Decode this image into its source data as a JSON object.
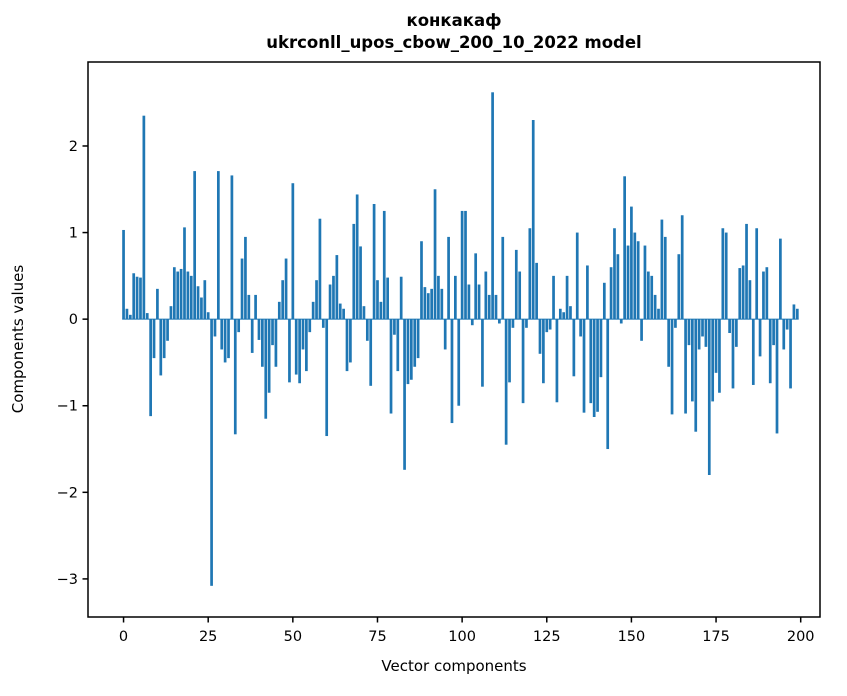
{
  "figure": {
    "title_line1": "конкакаф",
    "title_line2": "ukrconll_upos_cbow_200_10_2022 model",
    "xlabel": "Vector components",
    "ylabel": "Components values"
  },
  "chart_data": {
    "type": "bar",
    "title": "конкакаф\nukrconll_upos_cbow_200_10_2022 model",
    "xlabel": "Vector components",
    "ylabel": "Components values",
    "legend": null,
    "grid": false,
    "bar_color": "#1f77b4",
    "background_color": "#ffffff",
    "spine_color": "#000000",
    "x_start": 0,
    "x_tick_labels": [
      "0",
      "25",
      "50",
      "75",
      "100",
      "125",
      "150",
      "175",
      "200"
    ],
    "x_ticks": [
      0,
      25,
      50,
      75,
      100,
      125,
      150,
      175,
      200
    ],
    "y_tick_labels": [
      "2",
      "1",
      "0",
      "−1",
      "−2",
      "−3"
    ],
    "y_ticks": [
      2,
      1,
      0,
      -1,
      -2,
      -3
    ],
    "xlim": [
      -10.5,
      205.7
    ],
    "ylim": [
      -3.44,
      2.97
    ],
    "bar_width_units": 0.8,
    "values": [
      1.03,
      0.12,
      0.05,
      0.53,
      0.49,
      0.48,
      2.35,
      0.07,
      -1.12,
      -0.45,
      0.35,
      -0.65,
      -0.45,
      -0.25,
      0.15,
      0.6,
      0.55,
      0.58,
      1.06,
      0.55,
      0.5,
      1.71,
      0.38,
      0.25,
      0.45,
      0.08,
      -3.08,
      -0.2,
      1.71,
      -0.35,
      -0.5,
      -0.45,
      1.66,
      -1.33,
      -0.15,
      0.7,
      0.95,
      0.28,
      -0.39,
      0.28,
      -0.24,
      -0.55,
      -1.15,
      -0.85,
      -0.3,
      -0.55,
      0.2,
      0.45,
      0.7,
      -0.73,
      1.57,
      -0.64,
      -0.74,
      -0.35,
      -0.6,
      -0.15,
      0.2,
      0.45,
      1.16,
      -0.1,
      -1.35,
      0.4,
      0.5,
      0.74,
      0.18,
      0.12,
      -0.6,
      -0.5,
      1.1,
      1.44,
      0.84,
      0.15,
      -0.25,
      -0.77,
      1.33,
      0.45,
      0.2,
      1.25,
      0.48,
      -1.09,
      -0.18,
      -0.6,
      0.49,
      -1.74,
      -0.75,
      -0.7,
      -0.55,
      -0.45,
      0.9,
      0.37,
      0.3,
      0.35,
      1.5,
      0.5,
      0.35,
      -0.35,
      0.95,
      -1.2,
      0.5,
      -1.0,
      1.25,
      1.25,
      0.4,
      -0.07,
      0.76,
      0.4,
      -0.78,
      0.55,
      0.28,
      2.62,
      0.28,
      -0.05,
      0.95,
      -1.45,
      -0.73,
      -0.1,
      0.8,
      0.55,
      -0.97,
      -0.1,
      1.05,
      2.3,
      0.65,
      -0.4,
      -0.74,
      -0.15,
      -0.12,
      0.5,
      -0.96,
      0.12,
      0.08,
      0.5,
      0.15,
      -0.66,
      1.0,
      -0.2,
      -1.08,
      0.62,
      -0.97,
      -1.13,
      -1.07,
      -0.67,
      0.42,
      -1.5,
      0.6,
      1.05,
      0.75,
      -0.05,
      1.65,
      0.85,
      1.3,
      1.0,
      0.9,
      -0.25,
      0.85,
      0.55,
      0.5,
      0.28,
      0.12,
      1.15,
      0.95,
      -0.55,
      -1.1,
      -0.1,
      0.75,
      1.2,
      -1.09,
      -0.3,
      -0.95,
      -1.3,
      -0.35,
      -0.2,
      -0.32,
      -1.8,
      -0.95,
      -0.62,
      -0.85,
      1.05,
      1.0,
      -0.16,
      -0.8,
      -0.32,
      0.59,
      0.62,
      1.1,
      0.45,
      -0.76,
      1.05,
      -0.43,
      0.55,
      0.6,
      -0.74,
      -0.3,
      -1.32,
      0.93,
      -0.35,
      -0.12,
      -0.8,
      0.17,
      0.12
    ]
  }
}
